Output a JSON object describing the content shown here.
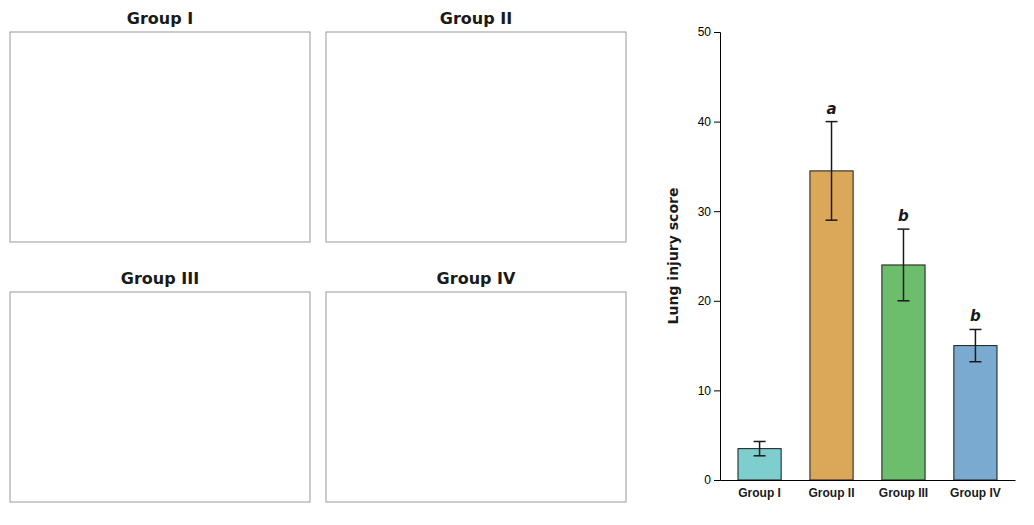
{
  "chart_data": [
    {
      "type": "image",
      "title": "Group I"
    },
    {
      "type": "image",
      "title": "Group II"
    },
    {
      "type": "image",
      "title": "Group III"
    },
    {
      "type": "image",
      "title": "Group IV"
    },
    {
      "type": "bar",
      "categories": [
        "Group I",
        "Group II",
        "Group III",
        "Group IV"
      ],
      "values": [
        3.5,
        34.5,
        24.0,
        15.0
      ],
      "errors": [
        0.8,
        5.5,
        4.0,
        1.8
      ],
      "colors": [
        "#7ecece",
        "#dba85a",
        "#6cbd6c",
        "#7aaad0"
      ],
      "ylabel": "Lung injury score",
      "ylim": [
        0,
        50
      ],
      "yticks": [
        0,
        10,
        20,
        30,
        40,
        50
      ],
      "annotations": [
        null,
        "a",
        "b",
        "b"
      ],
      "grid": false
    }
  ]
}
